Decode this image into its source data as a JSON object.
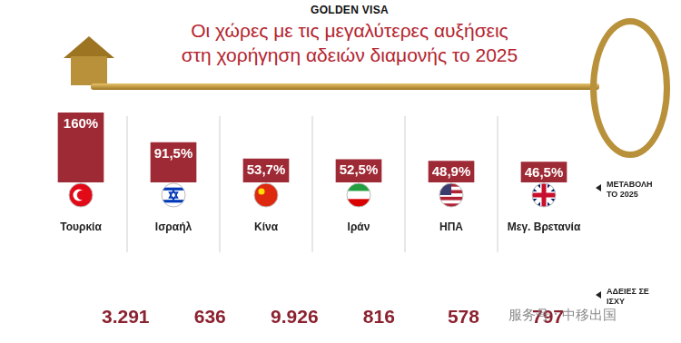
{
  "header": "GOLDEN VISA",
  "title": [
    "Οι χώρες με τις μεγαλύτερες αυξήσεις",
    "στη χορήγηση αδειών διαμονής το 2025"
  ],
  "watermark": "服务号 · 中移出国",
  "chart_data": [
    {
      "type": "bar",
      "annotation": "ΜΕΤΑΒΟΛΗ ΤΟ 2025",
      "categories": [
        "Τουρκία",
        "Ισραήλ",
        "Κίνα",
        "Ιράν",
        "ΗΠΑ",
        "Μεγ. Βρετανία"
      ],
      "values": [
        160,
        91.5,
        53.7,
        52.5,
        48.9,
        46.5
      ],
      "value_labels": [
        "160%",
        "91,5%",
        "53,7%",
        "52,5%",
        "48,9%",
        "46,5%"
      ],
      "color": "#9e2a35",
      "ylim": [
        0,
        160
      ],
      "grid": false,
      "data_labels": true,
      "tick_labels": "x"
    },
    {
      "type": "bubble",
      "annotation": "ΑΔΕΙΕΣ ΣΕ ΙΣΧΥ",
      "categories": [
        "Τουρκία",
        "Ισραήλ",
        "Κίνα",
        "Ιράν",
        "ΗΠΑ",
        "Μεγ. Βρετανία"
      ],
      "values": [
        3291,
        636,
        9926,
        816,
        578,
        797
      ],
      "value_labels": [
        "3.291",
        "636",
        "9.926",
        "816",
        "578",
        "797"
      ],
      "color": "#d6d6d6",
      "grid": false,
      "data_labels": true,
      "tick_labels": false
    }
  ]
}
